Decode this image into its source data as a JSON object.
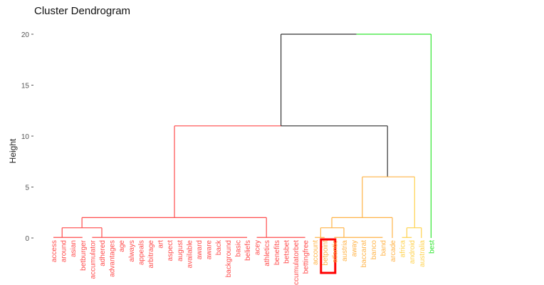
{
  "chart_data": {
    "type": "dendrogram",
    "title": "Cluster Dendrogram",
    "xlabel": "",
    "ylabel": "Height",
    "ylim": [
      0,
      20
    ],
    "yticks": [
      0,
      5,
      10,
      15,
      20
    ],
    "leaves": [
      {
        "label": "access",
        "cluster": "red"
      },
      {
        "label": "around",
        "cluster": "red"
      },
      {
        "label": "asian",
        "cluster": "red"
      },
      {
        "label": "betburger",
        "cluster": "red"
      },
      {
        "label": "accumulator",
        "cluster": "red"
      },
      {
        "label": "adhered",
        "cluster": "red"
      },
      {
        "label": "advantages",
        "cluster": "red"
      },
      {
        "label": "age",
        "cluster": "red"
      },
      {
        "label": "always",
        "cluster": "red"
      },
      {
        "label": "appeals",
        "cluster": "red"
      },
      {
        "label": "arbitrage",
        "cluster": "red"
      },
      {
        "label": "art",
        "cluster": "red"
      },
      {
        "label": "aspect",
        "cluster": "red"
      },
      {
        "label": "august",
        "cluster": "red"
      },
      {
        "label": "available",
        "cluster": "red"
      },
      {
        "label": "award",
        "cluster": "red"
      },
      {
        "label": "aware",
        "cluster": "red"
      },
      {
        "label": "back",
        "cluster": "red"
      },
      {
        "label": "background",
        "cluster": "red"
      },
      {
        "label": "basic",
        "cluster": "red"
      },
      {
        "label": "beliefs",
        "cluster": "red"
      },
      {
        "label": "acey",
        "cluster": "red"
      },
      {
        "label": "athletics",
        "cluster": "red"
      },
      {
        "label": "benefits",
        "cluster": "red"
      },
      {
        "label": "betsbet",
        "cluster": "red"
      },
      {
        "label": "accumulatorbet",
        "cluster": "red"
      },
      {
        "label": "bettingfree",
        "cluster": "red"
      },
      {
        "label": "account",
        "cluster": "orange"
      },
      {
        "label": "betpoint",
        "cluster": "orange"
      },
      {
        "label": "atlantic",
        "cluster": "orange"
      },
      {
        "label": "austria",
        "cluster": "orange"
      },
      {
        "label": "away",
        "cluster": "orange"
      },
      {
        "label": "baccarat",
        "cluster": "orange"
      },
      {
        "label": "banco",
        "cluster": "orange"
      },
      {
        "label": "band",
        "cluster": "orange"
      },
      {
        "label": "arcade",
        "cluster": "orange"
      },
      {
        "label": "africa",
        "cluster": "yellow"
      },
      {
        "label": "android",
        "cluster": "yellow"
      },
      {
        "label": "australia",
        "cluster": "yellow"
      },
      {
        "label": "best",
        "cluster": "green"
      }
    ],
    "segments": [
      {
        "x1": 23.5,
        "y1": 20,
        "x2": 31.3,
        "y2": 20,
        "c": "black"
      },
      {
        "x1": 31.3,
        "y1": 20,
        "x2": 39,
        "y2": 20,
        "c": "green"
      },
      {
        "x1": 23.5,
        "y1": 20,
        "x2": 23.5,
        "y2": 11,
        "c": "black"
      },
      {
        "x1": 39,
        "y1": 20,
        "x2": 39,
        "y2": 0,
        "c": "green"
      },
      {
        "x1": 12.5,
        "y1": 11,
        "x2": 23.5,
        "y2": 11,
        "c": "red"
      },
      {
        "x1": 23.5,
        "y1": 11,
        "x2": 34.5,
        "y2": 11,
        "c": "black"
      },
      {
        "x1": 12.5,
        "y1": 11,
        "x2": 12.5,
        "y2": 2,
        "c": "red"
      },
      {
        "x1": 34.5,
        "y1": 11,
        "x2": 34.5,
        "y2": 6,
        "c": "black"
      },
      {
        "x1": 2.95,
        "y1": 2,
        "x2": 22,
        "y2": 2,
        "c": "red"
      },
      {
        "x1": 2.95,
        "y1": 2,
        "x2": 2.95,
        "y2": 1,
        "c": "red"
      },
      {
        "x1": 22,
        "y1": 2,
        "x2": 22,
        "y2": 0.05,
        "c": "red"
      },
      {
        "x1": 0.9,
        "y1": 1,
        "x2": 5,
        "y2": 1,
        "c": "red"
      },
      {
        "x1": 0.9,
        "y1": 1,
        "x2": 0.9,
        "y2": 0.05,
        "c": "red"
      },
      {
        "x1": 5,
        "y1": 1,
        "x2": 5,
        "y2": 0.05,
        "c": "red"
      },
      {
        "x1": 0,
        "y1": 0.05,
        "x2": 3,
        "y2": 0.05,
        "c": "red"
      },
      {
        "x1": 4,
        "y1": 0.05,
        "x2": 20,
        "y2": 0.05,
        "c": "red"
      },
      {
        "x1": 21,
        "y1": 0.05,
        "x2": 26,
        "y2": 0.05,
        "c": "red"
      },
      {
        "x1": 31.9,
        "y1": 6,
        "x2": 37.3,
        "y2": 6,
        "c": "orange"
      },
      {
        "x1": 31.9,
        "y1": 6,
        "x2": 31.9,
        "y2": 2,
        "c": "orange"
      },
      {
        "x1": 37.3,
        "y1": 6,
        "x2": 37.3,
        "y2": 1,
        "c": "yellow"
      },
      {
        "x1": 28.75,
        "y1": 2,
        "x2": 35,
        "y2": 2,
        "c": "orange"
      },
      {
        "x1": 28.75,
        "y1": 2,
        "x2": 28.75,
        "y2": 1,
        "c": "orange"
      },
      {
        "x1": 35,
        "y1": 2,
        "x2": 35,
        "y2": 0,
        "c": "orange"
      },
      {
        "x1": 27.6,
        "y1": 1,
        "x2": 30,
        "y2": 1,
        "c": "orange"
      },
      {
        "x1": 27.6,
        "y1": 1,
        "x2": 27.6,
        "y2": 0.05,
        "c": "orange"
      },
      {
        "x1": 30,
        "y1": 1,
        "x2": 30,
        "y2": 0.05,
        "c": "orange"
      },
      {
        "x1": 27,
        "y1": 0.05,
        "x2": 28,
        "y2": 0.05,
        "c": "orange"
      },
      {
        "x1": 29,
        "y1": 0.05,
        "x2": 34,
        "y2": 0.05,
        "c": "orange"
      },
      {
        "x1": 36.5,
        "y1": 1,
        "x2": 38,
        "y2": 1,
        "c": "yellow"
      },
      {
        "x1": 36.5,
        "y1": 1,
        "x2": 36.5,
        "y2": 0.05,
        "c": "yellow"
      },
      {
        "x1": 38,
        "y1": 1,
        "x2": 38,
        "y2": 0,
        "c": "yellow"
      },
      {
        "x1": 36,
        "y1": 0.05,
        "x2": 37,
        "y2": 0.05,
        "c": "yellow"
      }
    ],
    "highlight_leaf": "betpoint",
    "colors": {
      "red": "#FF4D4D",
      "orange": "#FFB347",
      "yellow": "#FFD24D",
      "green": "#33E633",
      "black": "#333333",
      "highlight": "#FF0000"
    }
  }
}
